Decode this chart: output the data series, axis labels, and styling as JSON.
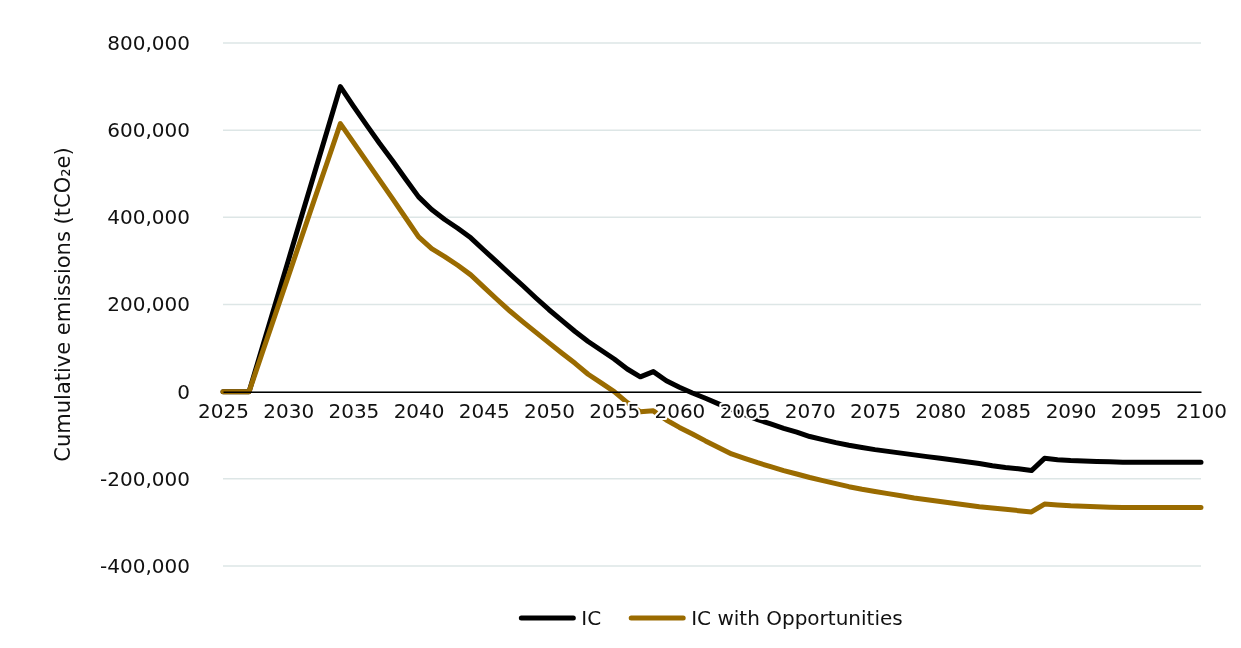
{
  "chart_data": {
    "type": "line",
    "ylabel": "Cumulative emissions (tCO₂e)",
    "x": [
      2025,
      2026,
      2027,
      2028,
      2029,
      2030,
      2031,
      2032,
      2033,
      2034,
      2035,
      2036,
      2037,
      2038,
      2039,
      2040,
      2041,
      2042,
      2043,
      2044,
      2045,
      2046,
      2047,
      2048,
      2049,
      2050,
      2051,
      2052,
      2053,
      2054,
      2055,
      2056,
      2057,
      2058,
      2059,
      2060,
      2061,
      2062,
      2063,
      2064,
      2065,
      2066,
      2067,
      2068,
      2069,
      2070,
      2071,
      2072,
      2073,
      2074,
      2075,
      2076,
      2077,
      2078,
      2079,
      2080,
      2081,
      2082,
      2083,
      2084,
      2085,
      2086,
      2087,
      2088,
      2089,
      2090,
      2091,
      2092,
      2093,
      2094,
      2095,
      2096,
      2097,
      2098,
      2099,
      2100
    ],
    "series": [
      {
        "name": "IC",
        "color": "#000000",
        "values": [
          0,
          0,
          0,
          100000,
          200000,
          300000,
          400000,
          500000,
          600000,
          700000,
          655000,
          612000,
          570000,
          530000,
          488000,
          447000,
          418000,
          395000,
          375000,
          353000,
          325000,
          298000,
          270000,
          243000,
          215000,
          188000,
          163000,
          138000,
          115000,
          95000,
          75000,
          52000,
          34000,
          46000,
          25000,
          10000,
          -3000,
          -15000,
          -28000,
          -41000,
          -53000,
          -64000,
          -74000,
          -84000,
          -93000,
          -103000,
          -110000,
          -117000,
          -123000,
          -128000,
          -133000,
          -137000,
          -141000,
          -145000,
          -149000,
          -153000,
          -157000,
          -161000,
          -165000,
          -170000,
          -174000,
          -177000,
          -181000,
          -153000,
          -156000,
          -158000,
          -159000,
          -160000,
          -161000,
          -162000,
          -162000,
          -162000,
          -162000,
          -162000,
          -162000,
          -162000
        ]
      },
      {
        "name": "IC with Opportunities",
        "color": "#9a6b00",
        "values": [
          0,
          0,
          0,
          88000,
          176000,
          264000,
          352000,
          440000,
          527000,
          615000,
          572000,
          529000,
          486000,
          443000,
          399000,
          355000,
          328000,
          310000,
          290000,
          268000,
          240000,
          212000,
          185000,
          160000,
          136000,
          112000,
          88000,
          65000,
          40000,
          20000,
          0,
          -25000,
          -46000,
          -44000,
          -65000,
          -82000,
          -97000,
          -113000,
          -128000,
          -143000,
          -153000,
          -163000,
          -172000,
          -181000,
          -189000,
          -197000,
          -204000,
          -211000,
          -218000,
          -224000,
          -229000,
          -234000,
          -239000,
          -244000,
          -248000,
          -252000,
          -256000,
          -260000,
          -264000,
          -267000,
          -270000,
          -273000,
          -276000,
          -258000,
          -260000,
          -262000,
          -263000,
          -264000,
          -265000,
          -266000,
          -266000,
          -266000,
          -266000,
          -266000,
          -266000,
          -266000
        ]
      }
    ],
    "xlim": [
      2025,
      2100
    ],
    "xticks": [
      2025,
      2030,
      2035,
      2040,
      2045,
      2050,
      2055,
      2060,
      2065,
      2070,
      2075,
      2080,
      2085,
      2090,
      2095,
      2100
    ],
    "ylim": [
      -400000,
      800000
    ],
    "yticks": [
      {
        "value": -400000,
        "label": "-400,000"
      },
      {
        "value": -200000,
        "label": "-200,000"
      },
      {
        "value": 0,
        "label": "0"
      },
      {
        "value": 200000,
        "label": "200,000"
      },
      {
        "value": 400000,
        "label": "400,000"
      },
      {
        "value": 600000,
        "label": "600,000"
      },
      {
        "value": 800000,
        "label": "800,000"
      }
    ],
    "grid": "y",
    "legend": "bottom",
    "line_style": "solid",
    "marker": "none"
  }
}
